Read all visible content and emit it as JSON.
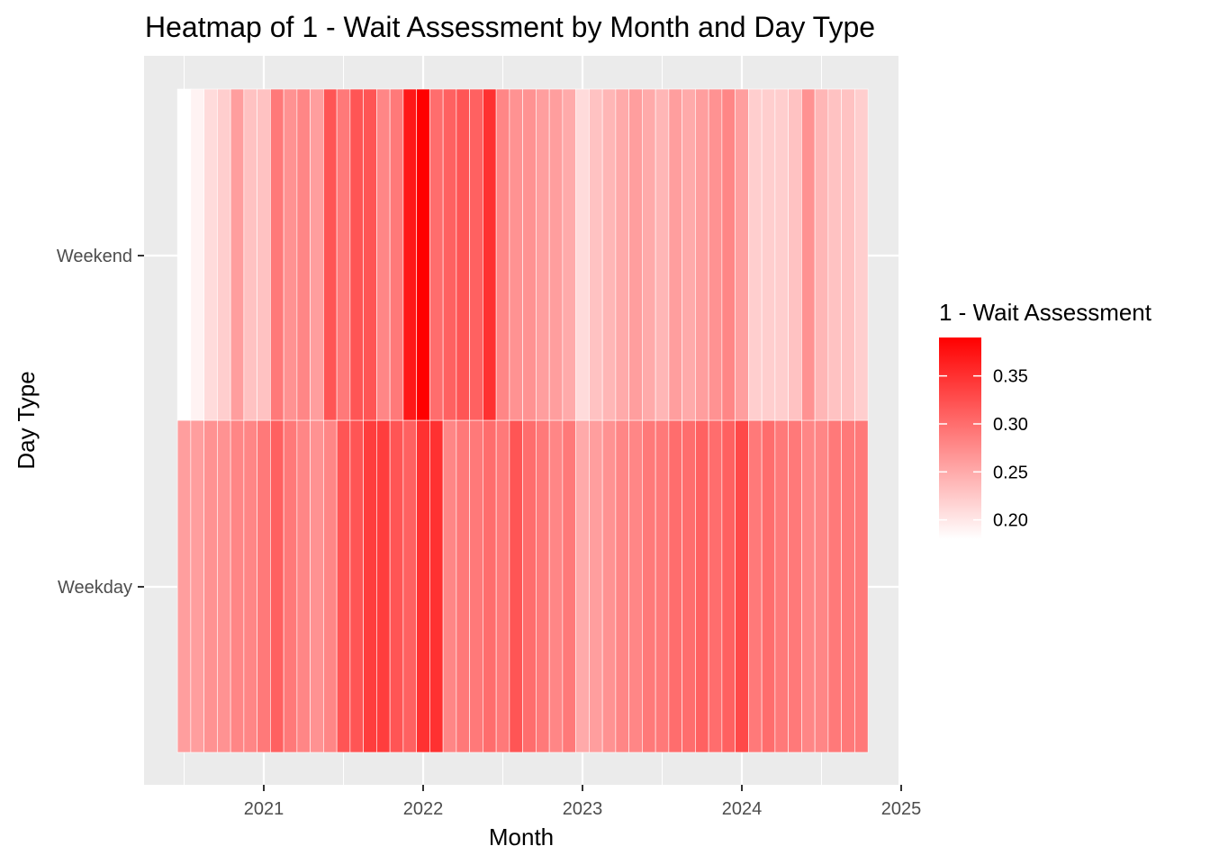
{
  "chart_data": {
    "type": "heatmap",
    "title": "Heatmap of 1 - Wait Assessment by Month and Day Type",
    "xlabel": "Month",
    "ylabel": "Day Type",
    "x_ticks": [
      "2021",
      "2022",
      "2023",
      "2024",
      "2025"
    ],
    "y_categories": [
      "Weekday",
      "Weekend"
    ],
    "x_start": "2020-07",
    "months": [
      "2020-07",
      "2020-08",
      "2020-09",
      "2020-10",
      "2020-11",
      "2020-12",
      "2021-01",
      "2021-02",
      "2021-03",
      "2021-04",
      "2021-05",
      "2021-06",
      "2021-07",
      "2021-08",
      "2021-09",
      "2021-10",
      "2021-11",
      "2021-12",
      "2022-01",
      "2022-02",
      "2022-03",
      "2022-04",
      "2022-05",
      "2022-06",
      "2022-07",
      "2022-08",
      "2022-09",
      "2022-10",
      "2022-11",
      "2022-12",
      "2023-01",
      "2023-02",
      "2023-03",
      "2023-04",
      "2023-05",
      "2023-06",
      "2023-07",
      "2023-08",
      "2023-09",
      "2023-10",
      "2023-11",
      "2023-12",
      "2024-01",
      "2024-02",
      "2024-03",
      "2024-04",
      "2024-05",
      "2024-06",
      "2024-07",
      "2024-08",
      "2024-09",
      "2024-10"
    ],
    "values": {
      "Weekend": [
        0.18,
        0.19,
        0.21,
        0.22,
        0.26,
        0.23,
        0.23,
        0.29,
        0.27,
        0.28,
        0.26,
        0.32,
        0.29,
        0.32,
        0.32,
        0.28,
        0.29,
        0.37,
        0.39,
        0.3,
        0.31,
        0.32,
        0.31,
        0.35,
        0.28,
        0.27,
        0.27,
        0.26,
        0.26,
        0.25,
        0.21,
        0.23,
        0.24,
        0.25,
        0.26,
        0.25,
        0.24,
        0.26,
        0.25,
        0.26,
        0.27,
        0.28,
        0.26,
        0.22,
        0.22,
        0.22,
        0.23,
        0.27,
        0.24,
        0.23,
        0.23,
        0.22
      ],
      "Weekday": [
        0.26,
        0.26,
        0.27,
        0.27,
        0.28,
        0.28,
        0.29,
        0.31,
        0.29,
        0.28,
        0.27,
        0.28,
        0.32,
        0.32,
        0.34,
        0.34,
        0.32,
        0.31,
        0.35,
        0.35,
        0.28,
        0.29,
        0.29,
        0.3,
        0.29,
        0.32,
        0.3,
        0.29,
        0.28,
        0.29,
        0.25,
        0.26,
        0.27,
        0.28,
        0.28,
        0.29,
        0.29,
        0.3,
        0.3,
        0.31,
        0.3,
        0.31,
        0.33,
        0.29,
        0.3,
        0.29,
        0.29,
        0.28,
        0.28,
        0.29,
        0.29,
        0.29
      ]
    },
    "legend": {
      "title": "1 - Wait Assessment",
      "breaks": [
        0.2,
        0.25,
        0.3,
        0.35
      ],
      "break_labels": [
        "0.20",
        "0.25",
        "0.30",
        "0.35"
      ],
      "min": 0.18,
      "max": 0.39,
      "low_color": "#ffffff",
      "high_color": "#ff0000",
      "position": "right"
    },
    "panel_background": "#ebebeb",
    "grid": true,
    "grid_color": "#ffffff"
  }
}
